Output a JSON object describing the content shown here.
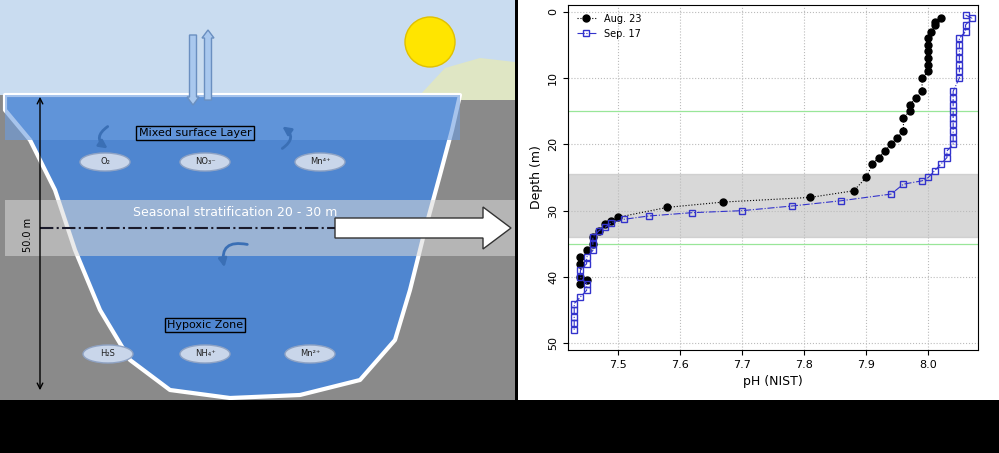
{
  "diagram": {
    "mixed_layer": "Mixed surface Layer",
    "surface_species": [
      "O₂",
      "NO₃⁻",
      "Mn⁴⁺"
    ],
    "stratification": "Seasonal stratification 20 - 30 m",
    "depth_label": "50.0 m",
    "hypoxic_zone": "Hypoxic Zone",
    "bottom_species": [
      "H₂S",
      "NH₄⁺",
      "Mn²⁺"
    ]
  },
  "chart_data": {
    "type": "line",
    "x_label": "pH (NIST)",
    "y_label": "Depth (m)",
    "xlim": [
      7.42,
      8.08
    ],
    "ylim": [
      51,
      -1
    ],
    "xticks": [
      7.5,
      7.6,
      7.7,
      7.8,
      7.9,
      8.0
    ],
    "yticks": [
      0,
      10,
      20,
      30,
      40,
      50
    ],
    "grid": true,
    "legend": "upper left",
    "reference_lines": [
      15,
      35
    ],
    "shaded_depth": [
      24.5,
      34
    ],
    "series": [
      {
        "name": "Aug. 23",
        "color": "#000000",
        "marker": "circle",
        "line_style": "dotted",
        "x": [
          8.02,
          8.01,
          8.01,
          8.005,
          8.0,
          8.0,
          8.0,
          8.0,
          8.0,
          8.0,
          7.99,
          7.99,
          7.98,
          7.97,
          7.97,
          7.96,
          7.96,
          7.95,
          7.94,
          7.93,
          7.92,
          7.91,
          7.9,
          7.88,
          7.81,
          7.67,
          7.58,
          7.5,
          7.49,
          7.48,
          7.47,
          7.46,
          7.46,
          7.45,
          7.44,
          7.44,
          7.44,
          7.45,
          7.44
        ],
        "y": [
          1,
          1.5,
          2,
          3,
          4,
          5,
          6,
          7,
          8,
          9,
          10,
          12,
          13,
          14,
          15,
          16,
          18,
          19,
          20,
          21,
          22,
          23,
          25,
          27,
          28,
          28.7,
          29.5,
          31,
          31.5,
          32,
          33,
          34,
          35,
          36,
          37,
          38,
          40,
          40.5,
          41
        ]
      },
      {
        "name": "Sep. 17",
        "color": "#3333cc",
        "marker": "open square",
        "line_style": "dashdot",
        "x": [
          8.06,
          8.07,
          8.06,
          8.06,
          8.05,
          8.05,
          8.05,
          8.05,
          8.05,
          8.05,
          8.05,
          8.04,
          8.04,
          8.04,
          8.04,
          8.04,
          8.04,
          8.04,
          8.04,
          8.04,
          8.03,
          8.03,
          8.02,
          8.01,
          8.0,
          7.99,
          7.96,
          7.94,
          7.86,
          7.78,
          7.7,
          7.62,
          7.55,
          7.51,
          7.49,
          7.48,
          7.47,
          7.46,
          7.46,
          7.46,
          7.45,
          7.45,
          7.44,
          7.44,
          7.45,
          7.45,
          7.44,
          7.43,
          7.43,
          7.43,
          7.43,
          7.43
        ],
        "y": [
          0.5,
          1,
          2,
          3,
          4,
          5,
          6,
          7,
          8,
          9,
          10,
          12,
          13,
          14,
          15,
          16,
          17,
          18,
          19,
          20,
          21,
          22,
          23,
          24,
          25,
          25.5,
          26,
          27.5,
          28.5,
          29.3,
          30,
          30.3,
          30.8,
          31.3,
          31.8,
          32.5,
          33,
          34,
          35,
          36,
          37,
          38,
          39,
          40,
          41,
          42,
          43,
          44,
          45,
          46,
          47,
          48
        ]
      }
    ]
  }
}
